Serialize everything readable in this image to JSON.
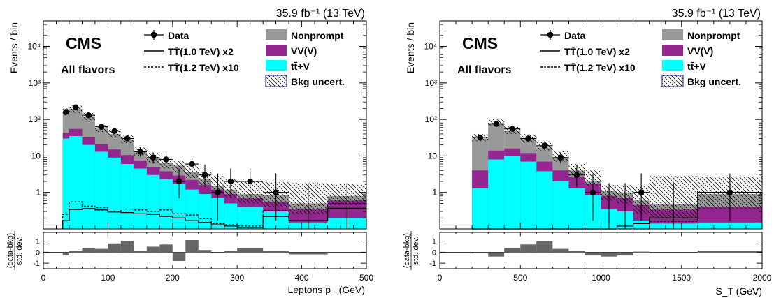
{
  "colors": {
    "nonprompt": "#999999",
    "vvv": "#93278f",
    "ttv": "#00ffff",
    "ratio": "#666666"
  },
  "chart_data": [
    {
      "type": "bar",
      "stacked": true,
      "log_y": true,
      "header": "35.9 fb⁻¹ (13 TeV)",
      "experiment": "CMS",
      "channel": "All flavors",
      "xlabel": "Leptons p_ (GeV)",
      "ylabel": "Events / bin",
      "xlim": [
        0,
        500
      ],
      "ylim": [
        0.1,
        50000
      ],
      "xticks": [
        0,
        100,
        200,
        300,
        400,
        500
      ],
      "yticks": [
        {
          "v": 1,
          "label": "1"
        },
        {
          "v": 10,
          "label": "10"
        },
        {
          "v": 100,
          "label": "10²"
        },
        {
          "v": 1000,
          "label": "10³"
        },
        {
          "v": 10000,
          "label": "10⁴"
        }
      ],
      "bin_edges": [
        30,
        40,
        60,
        80,
        100,
        120,
        140,
        160,
        180,
        200,
        220,
        240,
        260,
        280,
        300,
        340,
        380,
        440,
        500
      ],
      "series": [
        {
          "name": "tt̄+V",
          "color_key": "ttv",
          "values": [
            30,
            35,
            20,
            13,
            9,
            6,
            4.5,
            3,
            2.3,
            1.7,
            1.2,
            0.9,
            0.7,
            0.5,
            0.4,
            0.3,
            0.15,
            0.2
          ]
        },
        {
          "name": "VV(V)",
          "color_key": "vvv",
          "values": [
            13,
            20,
            12,
            8,
            6,
            4.5,
            3,
            2,
            1.5,
            1.2,
            1.0,
            0.7,
            0.5,
            0.4,
            0.3,
            0.25,
            0.2,
            0.4
          ]
        },
        {
          "name": "Nonprompt",
          "color_key": "nonprompt",
          "values": [
            120,
            140,
            90,
            35,
            25,
            18,
            6,
            4,
            2.5,
            2.5,
            1.5,
            0.8,
            0.3,
            0.3,
            0.2,
            0.3,
            0.15,
            0.2
          ]
        }
      ],
      "uncertainty_band": {
        "lo": [
          130,
          150,
          95,
          43,
          32,
          22,
          10,
          6.5,
          4.5,
          3.5,
          2.5,
          1.6,
          0.9,
          0.7,
          0.5,
          0.4,
          0.25,
          0.45
        ],
        "hi": [
          200,
          240,
          150,
          70,
          52,
          36,
          17,
          12,
          8,
          7.2,
          5.5,
          3.7,
          2.8,
          2.4,
          2.0,
          1.9,
          1.8,
          1.7
        ]
      },
      "data": [
        {
          "x": 35,
          "y": 160,
          "lo": 130,
          "hi": 190
        },
        {
          "x": 50,
          "y": 215,
          "lo": 190,
          "hi": 240
        },
        {
          "x": 70,
          "y": 130,
          "lo": 112,
          "hi": 150
        },
        {
          "x": 90,
          "y": 63,
          "lo": 55,
          "hi": 72
        },
        {
          "x": 110,
          "y": 48,
          "lo": 41,
          "hi": 56
        },
        {
          "x": 130,
          "y": 30,
          "lo": 25,
          "hi": 36
        },
        {
          "x": 150,
          "y": 13,
          "lo": 9.5,
          "hi": 17.5
        },
        {
          "x": 170,
          "y": 9,
          "lo": 6.2,
          "hi": 12.5
        },
        {
          "x": 190,
          "y": 8,
          "lo": 5.4,
          "hi": 11.5
        },
        {
          "x": 210,
          "y": 2,
          "lo": 0.7,
          "hi": 4.5
        },
        {
          "x": 230,
          "y": 6,
          "lo": 3.8,
          "hi": 9.2
        },
        {
          "x": 250,
          "y": 3,
          "lo": 1.4,
          "hi": 5.8
        },
        {
          "x": 270,
          "y": 1,
          "lo": 0.17,
          "hi": 3.3
        },
        {
          "x": 290,
          "y": 2,
          "lo": 0.7,
          "hi": 4.5
        },
        {
          "x": 320,
          "y": 2,
          "lo": 0.7,
          "hi": 4.5
        },
        {
          "x": 360,
          "y": 1,
          "lo": 0.17,
          "hi": 3.3
        }
      ],
      "empty_data": [
        {
          "x": 410,
          "hi": 1.8
        },
        {
          "x": 470,
          "hi": 1.8
        }
      ],
      "signal_curves": [
        {
          "name": "TT̄(1.0 TeV) x2",
          "dash": false,
          "values": [
            0.17,
            0.34,
            0.36,
            0.33,
            0.29,
            0.28,
            0.26,
            0.25,
            0.22,
            0.2,
            0.17,
            0.15,
            0.13,
            0.12,
            0.11,
            0.22,
            0.17,
            0.37
          ]
        },
        {
          "name": "TT̄(1.2 TeV) x10",
          "dash": true,
          "values": [
            0.25,
            0.55,
            0.42,
            0.38,
            0.3,
            0.35,
            0.33,
            0.3,
            0.33,
            0.26,
            0.24,
            0.19,
            0.14,
            0.13,
            0.12,
            0.32,
            0.17,
            0.5
          ]
        }
      ],
      "ratio": {
        "ylabel_top": "(data-bkg)",
        "ylabel_bottom": "std. dev.",
        "ylim": [
          -1.5,
          1.8
        ],
        "yticks": [
          -1,
          0,
          1
        ],
        "values": [
          -0.3,
          0.1,
          0.4,
          0.3,
          0.8,
          1.0,
          0.1,
          0.5,
          0.7,
          -0.8,
          1.1,
          0.2,
          -0.1,
          0.1,
          0.4,
          0.1,
          -0.2,
          -0.1
        ]
      },
      "legend": {
        "data": "Data",
        "signal1": "TT̄(1.0 TeV) x2",
        "signal2": "TT̄(1.2 TeV) x10",
        "bkg1": "Nonprompt",
        "bkg2": "VV(V)",
        "bkg3": "tt̄+V",
        "unc": "Bkg uncert."
      }
    },
    {
      "type": "bar",
      "stacked": true,
      "log_y": true,
      "header": "35.9 fb⁻¹ (13 TeV)",
      "experiment": "CMS",
      "channel": "All flavors",
      "xlabel": "S_T (GeV)",
      "ylabel": "Events / bin",
      "xlim": [
        0,
        2000
      ],
      "ylim": [
        0.1,
        50000
      ],
      "xticks": [
        0,
        500,
        1000,
        1500,
        2000
      ],
      "yticks": [
        {
          "v": 1,
          "label": "1"
        },
        {
          "v": 10,
          "label": "10"
        },
        {
          "v": 100,
          "label": "10²"
        },
        {
          "v": 1000,
          "label": "10³"
        },
        {
          "v": 10000,
          "label": "10⁴"
        }
      ],
      "bin_edges": [
        200,
        300,
        400,
        500,
        600,
        700,
        800,
        900,
        1000,
        1100,
        1200,
        1300,
        1600,
        2000
      ],
      "series": [
        {
          "name": "tt̄+V",
          "color_key": "ttv",
          "values": [
            1.3,
            8,
            10,
            7,
            3.8,
            2.0,
            1.3,
            0.85,
            0.35,
            0.3,
            0.17,
            0.14,
            0.15
          ]
        },
        {
          "name": "VV(V)",
          "color_key": "vvv",
          "values": [
            2.7,
            6,
            6,
            5,
            3.2,
            2.0,
            1.3,
            0.9,
            0.45,
            0.4,
            0.28,
            0.2,
            0.25
          ]
        },
        {
          "name": "Nonprompt",
          "color_key": "nonprompt",
          "values": [
            26,
            66,
            34,
            17,
            10,
            5,
            1.4,
            0.3,
            0.3,
            0.3,
            0.15,
            0.15,
            0.5
          ]
        }
      ],
      "uncertainty_band": {
        "lo": [
          25,
          65,
          40,
          23,
          14,
          7,
          3,
          1.5,
          0.6,
          0.5,
          0.25,
          0.2,
          0.35
        ],
        "hi": [
          40,
          100,
          65,
          40,
          25,
          14,
          6,
          4,
          1.6,
          1.6,
          1.5,
          2.8,
          2.6
        ]
      },
      "data": [
        {
          "x": 250,
          "y": 32,
          "lo": 26,
          "hi": 39
        },
        {
          "x": 350,
          "y": 75,
          "lo": 66,
          "hi": 85
        },
        {
          "x": 450,
          "y": 55,
          "lo": 47,
          "hi": 63
        },
        {
          "x": 550,
          "y": 30,
          "lo": 25,
          "hi": 36
        },
        {
          "x": 650,
          "y": 19,
          "lo": 15,
          "hi": 24
        },
        {
          "x": 750,
          "y": 9,
          "lo": 6.2,
          "hi": 12.5
        },
        {
          "x": 850,
          "y": 3,
          "lo": 1.4,
          "hi": 5.8
        },
        {
          "x": 950,
          "y": 1,
          "lo": 0.17,
          "hi": 3.3
        },
        {
          "x": 1250,
          "y": 1,
          "lo": 0.17,
          "hi": 3.3
        },
        {
          "x": 1800,
          "y": 1,
          "lo": 0.17,
          "hi": 3.3
        }
      ],
      "empty_data": [
        {
          "x": 1050,
          "hi": 1.8
        },
        {
          "x": 1150,
          "hi": 1.8
        },
        {
          "x": 1450,
          "hi": 1.8
        }
      ],
      "signal_curves": [
        {
          "name": "TT̄(1.0 TeV) x2",
          "dash": false,
          "values": [
            0.1,
            0.1,
            0.1,
            0.1,
            0.1,
            0.1,
            0.1,
            0.1,
            0.1,
            0.12,
            0.14,
            0.2,
            1.0
          ]
        },
        {
          "name": "TT̄(1.2 TeV) x10",
          "dash": true,
          "values": [
            0.1,
            0.1,
            0.1,
            0.1,
            0.1,
            0.1,
            0.1,
            0.1,
            0.1,
            0.1,
            0.1,
            0.16,
            1.1
          ]
        }
      ],
      "ratio": {
        "ylabel_top": "(data-bkg)",
        "ylabel_bottom": "std. dev.",
        "ylim": [
          -1.5,
          1.8
        ],
        "yticks": [
          -1,
          0,
          1
        ],
        "values": [
          -0.1,
          -0.4,
          0.4,
          0.7,
          1.0,
          0.3,
          0.1,
          -0.3,
          -0.4,
          -0.3,
          0.05,
          -0.1,
          0.15
        ]
      },
      "legend": {
        "data": "Data",
        "signal1": "TT̄(1.0 TeV) x2",
        "signal2": "TT̄(1.2 TeV) x10",
        "bkg1": "Nonprompt",
        "bkg2": "VV(V)",
        "bkg3": "tt̄+V",
        "unc": "Bkg uncert."
      }
    }
  ]
}
